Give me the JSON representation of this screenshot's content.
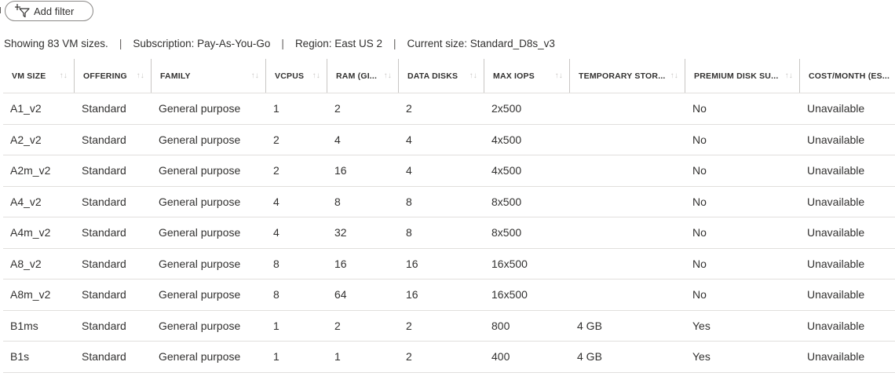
{
  "toolbar": {
    "add_filter_label": "Add filter"
  },
  "summary": {
    "showing": "Showing 83 VM sizes.",
    "subscription": "Subscription: Pay-As-You-Go",
    "region": "Region: East US 2",
    "current_size": "Current size: Standard_D8s_v3",
    "separator": "|"
  },
  "table": {
    "columns": [
      "VM SIZE",
      "OFFERING",
      "FAMILY",
      "VCPUS",
      "RAM (GI...",
      "DATA DISKS",
      "MAX IOPS",
      "TEMPORARY STOR...",
      "PREMIUM DISK SU...",
      "COST/MONTH (ES..."
    ],
    "rows": [
      [
        "A1_v2",
        "Standard",
        "General purpose",
        "1",
        "2",
        "2",
        "2x500",
        "",
        "No",
        "Unavailable"
      ],
      [
        "A2_v2",
        "Standard",
        "General purpose",
        "2",
        "4",
        "4",
        "4x500",
        "",
        "No",
        "Unavailable"
      ],
      [
        "A2m_v2",
        "Standard",
        "General purpose",
        "2",
        "16",
        "4",
        "4x500",
        "",
        "No",
        "Unavailable"
      ],
      [
        "A4_v2",
        "Standard",
        "General purpose",
        "4",
        "8",
        "8",
        "8x500",
        "",
        "No",
        "Unavailable"
      ],
      [
        "A4m_v2",
        "Standard",
        "General purpose",
        "4",
        "32",
        "8",
        "8x500",
        "",
        "No",
        "Unavailable"
      ],
      [
        "A8_v2",
        "Standard",
        "General purpose",
        "8",
        "16",
        "16",
        "16x500",
        "",
        "No",
        "Unavailable"
      ],
      [
        "A8m_v2",
        "Standard",
        "General purpose",
        "8",
        "64",
        "16",
        "16x500",
        "",
        "No",
        "Unavailable"
      ],
      [
        "B1ms",
        "Standard",
        "General purpose",
        "1",
        "2",
        "2",
        "800",
        "4 GB",
        "Yes",
        "Unavailable"
      ],
      [
        "B1s",
        "Standard",
        "General purpose",
        "1",
        "1",
        "2",
        "400",
        "4 GB",
        "Yes",
        "Unavailable"
      ]
    ]
  },
  "icons": {
    "filter": "add-filter-icon",
    "sort": "sort-icon"
  },
  "colors": {
    "text": "#323130",
    "border": "#e1dfdd",
    "header_divider": "#c8c6c4",
    "pill_border": "#8a8886"
  }
}
